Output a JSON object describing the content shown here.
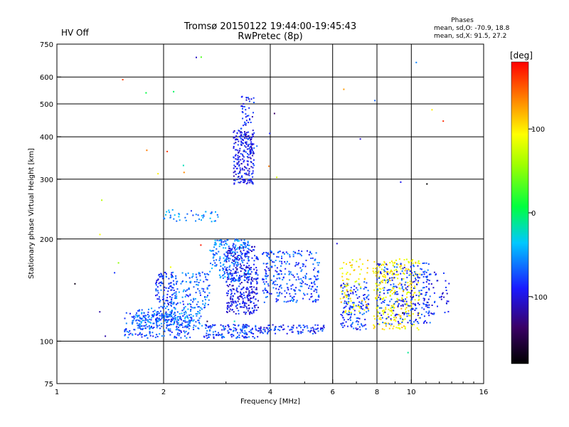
{
  "header": {
    "title_line1": "Tromsø 20150122 19:44:00-19:45:43",
    "title_line2": "RwPretec (8p)",
    "hv_status": "HV Off",
    "hv_color": "#cc0000",
    "phases_title": "Phases",
    "phases_line1": "mean, sd,O: -70.9, 18.8",
    "phases_line2": "mean, sd,X:  91.5, 27.2"
  },
  "chart_data": {
    "type": "scatter",
    "title": "Tromsø 20150122 19:44:00-19:45:43",
    "subtitle": "RwPretec (8p)",
    "xlabel": "Frequency [MHz]",
    "ylabel": "Stationary phase Virtual Height [km]",
    "x_scale": "log",
    "y_scale": "log",
    "xlim": [
      1,
      16
    ],
    "ylim": [
      75,
      750
    ],
    "x_ticks": [
      1,
      2,
      4,
      6,
      8,
      10,
      16
    ],
    "x_ticklabels": [
      "1",
      "2",
      "4",
      "6",
      "8",
      "10",
      "16"
    ],
    "x_gridlines": [
      2,
      4,
      6,
      8,
      10
    ],
    "y_ticks": [
      75,
      100,
      200,
      300,
      400,
      500,
      600,
      750
    ],
    "y_ticklabels": [
      "75",
      "100",
      "200",
      "300",
      "400",
      "500",
      "600",
      "750"
    ],
    "y_gridlines": [
      100,
      200,
      300,
      400,
      500,
      600
    ],
    "grid": true,
    "colorbar": {
      "label": "[deg]",
      "range": [
        -180,
        180
      ],
      "ticks": [
        100,
        0,
        -100
      ],
      "ticklabels": [
        "100",
        "0",
        "-100"
      ]
    },
    "clusters": [
      {
        "x": [
          1.55,
          2.4
        ],
        "y": [
          102,
          122
        ],
        "phase": -75,
        "density": 1.0
      },
      {
        "x": [
          1.65,
          2.6
        ],
        "y": [
          108,
          125
        ],
        "phase": -60,
        "density": 0.9
      },
      {
        "x": [
          1.9,
          2.15
        ],
        "y": [
          115,
          160
        ],
        "phase": -80,
        "density": 1.2
      },
      {
        "x": [
          2.1,
          2.7
        ],
        "y": [
          125,
          160
        ],
        "phase": -65,
        "density": 0.8
      },
      {
        "x": [
          2.6,
          3.7
        ],
        "y": [
          102,
          112
        ],
        "phase": -80,
        "density": 1.6
      },
      {
        "x": [
          2.7,
          3.5
        ],
        "y": [
          150,
          200
        ],
        "phase": -60,
        "density": 1.0
      },
      {
        "x": [
          3.0,
          3.7
        ],
        "y": [
          120,
          190
        ],
        "phase": -95,
        "density": 1.4
      },
      {
        "x": [
          3.15,
          3.6
        ],
        "y": [
          290,
          420
        ],
        "phase": -95,
        "density": 1.6
      },
      {
        "x": [
          3.3,
          3.6
        ],
        "y": [
          350,
          530
        ],
        "phase": -90,
        "density": 0.7
      },
      {
        "x": [
          2.0,
          2.9
        ],
        "y": [
          225,
          245
        ],
        "phase": -60,
        "density": 0.5
      },
      {
        "x": [
          3.7,
          5.7
        ],
        "y": [
          105,
          112
        ],
        "phase": -85,
        "density": 1.3
      },
      {
        "x": [
          3.8,
          5.5
        ],
        "y": [
          130,
          185
        ],
        "phase": -75,
        "density": 0.8
      },
      {
        "x": [
          6.3,
          7.6
        ],
        "y": [
          108,
          150
        ],
        "phase": -80,
        "density": 0.9
      },
      {
        "x": [
          6.3,
          7.6
        ],
        "y": [
          120,
          175
        ],
        "phase": 100,
        "density": 0.4
      },
      {
        "x": [
          7.8,
          10.6
        ],
        "y": [
          108,
          175
        ],
        "phase": 95,
        "density": 0.7
      },
      {
        "x": [
          8.0,
          11.3
        ],
        "y": [
          112,
          170
        ],
        "phase": -80,
        "density": 0.6
      },
      {
        "x": [
          10.0,
          12.8
        ],
        "y": [
          120,
          160
        ],
        "phase": -90,
        "density": 0.4
      },
      {
        "x": [
          1.0,
          13.0
        ],
        "y": [
          76,
          700
        ],
        "phase": 0,
        "density": 0.25,
        "sparse": true
      }
    ]
  }
}
